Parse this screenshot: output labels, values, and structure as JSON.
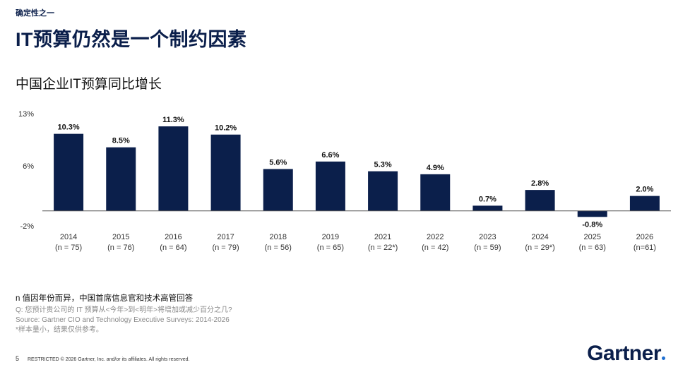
{
  "header": {
    "kicker": "确定性之一",
    "title": "IT预算仍然是一个制约因素"
  },
  "chart_title": "中国企业IT预算同比增长",
  "chart_data": {
    "type": "bar",
    "title": "中国企业IT预算同比增长",
    "categories": [
      "2014",
      "2015",
      "2016",
      "2017",
      "2018",
      "2019",
      "2021",
      "2022",
      "2023",
      "2024",
      "2025",
      "2026"
    ],
    "sample_labels": [
      "(n = 75)",
      "(n = 76)",
      "(n = 64)",
      "(n = 79)",
      "(n = 56)",
      "(n = 65)",
      "(n = 22*)",
      "(n = 42)",
      "(n = 59)",
      "(n = 29*)",
      "(n = 63)",
      "(n=61)"
    ],
    "values": [
      10.3,
      8.5,
      11.3,
      10.2,
      5.6,
      6.6,
      5.3,
      4.9,
      0.7,
      2.8,
      -0.8,
      2.0
    ],
    "value_labels": [
      "10.3%",
      "8.5%",
      "11.3%",
      "10.2%",
      "5.6%",
      "6.6%",
      "5.3%",
      "4.9%",
      "0.7%",
      "2.8%",
      "-0.8%",
      "2.0%"
    ],
    "y_ticks": [
      "13%",
      "6%",
      "-2%"
    ],
    "y_tick_values": [
      13,
      6,
      -2
    ],
    "ylim": [
      -2,
      13
    ],
    "grid": false,
    "bar_color": "#0b1f4b"
  },
  "notes": {
    "main": "n 值因年份而异，中国首席信息官和技术高管回答",
    "question": "Q: 您预计贵公司的 IT 预算从<今年>到<明年>将增加或减少百分之几?",
    "source": "Source: Gartner CIO and Technology Executive Surveys: 2014-2026",
    "caveat": "*样本量小，结果仅供参考。"
  },
  "footer": {
    "page": "5",
    "restricted": "RESTRICTED © 2026 Gartner, Inc. and/or its affiliates. All rights reserved."
  },
  "logo": "Gartner"
}
